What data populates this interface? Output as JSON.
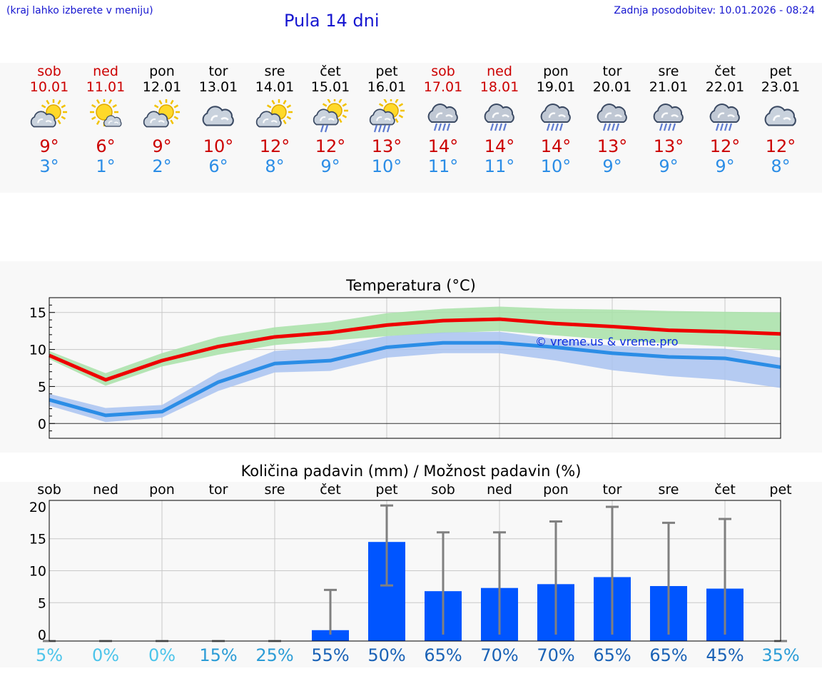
{
  "header": {
    "hint": "(kraj lahko izberete v meniju)",
    "title": "Pula 14 dni",
    "updated": "Zadnja posodobitev: 10.01.2026 - 08:24"
  },
  "days": [
    {
      "name": "sob",
      "date": "10.01",
      "weekend": true,
      "icon": "sun-cloud-icon",
      "tmax": "9°",
      "tmin": "3°"
    },
    {
      "name": "ned",
      "date": "11.01",
      "weekend": true,
      "icon": "sun-small-cloud-icon",
      "tmax": "6°",
      "tmin": "1°"
    },
    {
      "name": "pon",
      "date": "12.01",
      "weekend": false,
      "icon": "sun-cloud-icon",
      "tmax": "9°",
      "tmin": "2°"
    },
    {
      "name": "tor",
      "date": "13.01",
      "weekend": false,
      "icon": "cloud-icon",
      "tmax": "10°",
      "tmin": "6°"
    },
    {
      "name": "sre",
      "date": "14.01",
      "weekend": false,
      "icon": "sun-cloud-icon",
      "tmax": "12°",
      "tmin": "8°"
    },
    {
      "name": "čet",
      "date": "15.01",
      "weekend": false,
      "icon": "sun-cloud-light-rain-icon",
      "tmax": "12°",
      "tmin": "9°"
    },
    {
      "name": "pet",
      "date": "16.01",
      "weekend": false,
      "icon": "sun-cloud-rain-icon",
      "tmax": "13°",
      "tmin": "10°"
    },
    {
      "name": "sob",
      "date": "17.01",
      "weekend": true,
      "icon": "cloud-rain-icon",
      "tmax": "14°",
      "tmin": "11°"
    },
    {
      "name": "ned",
      "date": "18.01",
      "weekend": true,
      "icon": "cloud-rain-icon",
      "tmax": "14°",
      "tmin": "11°"
    },
    {
      "name": "pon",
      "date": "19.01",
      "weekend": false,
      "icon": "cloud-rain-icon",
      "tmax": "14°",
      "tmin": "10°"
    },
    {
      "name": "tor",
      "date": "20.01",
      "weekend": false,
      "icon": "cloud-rain-icon",
      "tmax": "13°",
      "tmin": "9°"
    },
    {
      "name": "sre",
      "date": "21.01",
      "weekend": false,
      "icon": "cloud-rain-icon",
      "tmax": "13°",
      "tmin": "9°"
    },
    {
      "name": "čet",
      "date": "22.01",
      "weekend": false,
      "icon": "cloud-rain-icon",
      "tmax": "12°",
      "tmin": "9°"
    },
    {
      "name": "pet",
      "date": "23.01",
      "weekend": false,
      "icon": "cloud-icon",
      "tmax": "12°",
      "tmin": "8°"
    }
  ],
  "colors": {
    "max_line": "#ee0000",
    "max_band": "#a8e2a8",
    "min_line": "#2b8de6",
    "min_band": "#a9c3f1",
    "bar": "#0055ff",
    "whisker": "#808080",
    "watermark": "#0a2be0"
  },
  "chart_data": [
    {
      "type": "line",
      "title": "Temperatura (°C)",
      "watermark": "© vreme.us & vreme.pro",
      "ylim": [
        -2,
        17
      ],
      "yticks": [
        "15",
        "10",
        "5",
        "0"
      ],
      "series": [
        {
          "name": "max",
          "values": [
            9.2,
            5.9,
            8.5,
            10.4,
            11.7,
            12.3,
            13.3,
            13.9,
            14.1,
            13.5,
            13.1,
            12.6,
            12.4,
            12.1
          ],
          "upper": [
            9.8,
            6.8,
            9.5,
            11.7,
            13.0,
            13.7,
            14.9,
            15.5,
            15.8,
            15.5,
            15.4,
            15.2,
            15.1,
            15.0
          ],
          "lower": [
            8.7,
            5.1,
            7.7,
            9.3,
            10.6,
            11.2,
            11.8,
            12.2,
            12.5,
            11.9,
            11.3,
            10.8,
            10.4,
            9.9
          ]
        },
        {
          "name": "min",
          "values": [
            3.2,
            1.1,
            1.6,
            5.6,
            8.1,
            8.5,
            10.3,
            10.9,
            10.9,
            10.3,
            9.5,
            9.0,
            8.8,
            7.6
          ],
          "upper": [
            4.0,
            2.1,
            2.5,
            6.9,
            9.8,
            10.3,
            11.8,
            12.3,
            12.4,
            11.4,
            10.5,
            10.2,
            10.1,
            8.9
          ],
          "lower": [
            2.4,
            0.2,
            0.8,
            4.4,
            6.9,
            7.1,
            8.9,
            9.5,
            9.5,
            8.5,
            7.2,
            6.4,
            5.9,
            4.8
          ]
        }
      ]
    },
    {
      "type": "bar",
      "title": "Količina padavin (mm) / Možnost padavin (%)",
      "categories": [
        "sob",
        "ned",
        "pon",
        "tor",
        "sre",
        "čet",
        "pet",
        "sob",
        "ned",
        "pon",
        "tor",
        "sre",
        "čet",
        "pet"
      ],
      "ylim": [
        -1,
        21
      ],
      "yticks": [
        "20",
        "15",
        "10",
        "5",
        "0"
      ],
      "values": [
        0,
        0,
        0,
        0,
        0,
        0.7,
        14.5,
        6.8,
        7.3,
        7.9,
        9.0,
        7.6,
        7.2,
        0
      ],
      "error_low": [
        0,
        0,
        0,
        0,
        0,
        0,
        7.7,
        0,
        0,
        0,
        0,
        0,
        0,
        0
      ],
      "error_high": [
        0,
        0,
        0,
        0,
        0,
        7.0,
        20.2,
        16.0,
        16.0,
        17.7,
        20.0,
        17.5,
        18.1,
        0
      ],
      "probability": [
        "5%",
        "0%",
        "0%",
        "15%",
        "25%",
        "55%",
        "50%",
        "65%",
        "70%",
        "70%",
        "65%",
        "65%",
        "45%",
        "35%"
      ],
      "probability_values": [
        5,
        0,
        0,
        15,
        25,
        55,
        50,
        65,
        70,
        70,
        65,
        65,
        45,
        35
      ]
    }
  ]
}
